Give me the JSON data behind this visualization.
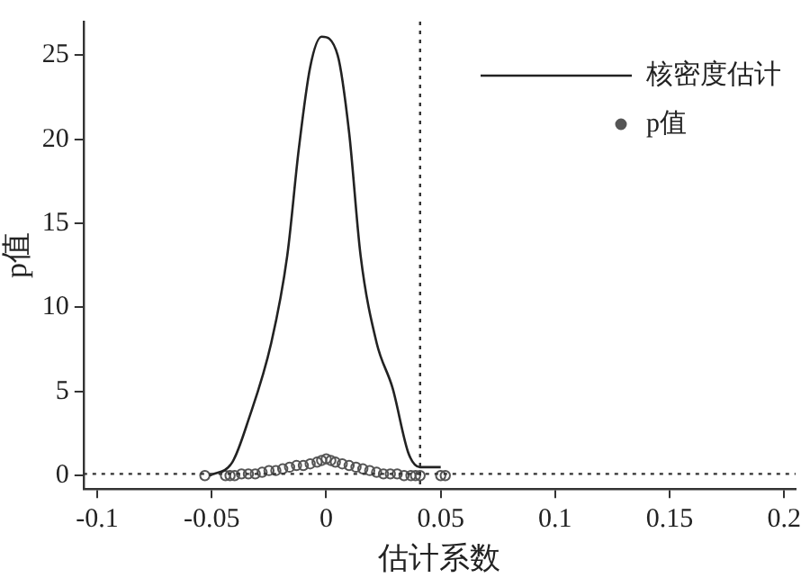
{
  "chart_data": {
    "type": "line",
    "xlabel": "估计系数",
    "ylabel": "p值",
    "xlim": [
      -0.106,
      0.205
    ],
    "ylim": [
      -0.8,
      27
    ],
    "xticks": [
      -0.1,
      -0.05,
      0,
      0.05,
      0.1,
      0.15,
      0.2
    ],
    "yticks": [
      0,
      5,
      10,
      15,
      20,
      25
    ],
    "grid": false,
    "legend": "top right",
    "marker": "none",
    "series": [
      {
        "name": "核密度估计",
        "type": "line",
        "color": "#222222",
        "line_style": "solid",
        "x": [
          -0.051,
          -0.041,
          -0.034,
          -0.024,
          -0.017,
          -0.012,
          -0.007,
          -0.002,
          0.005,
          0.01,
          0.015,
          0.022,
          0.029,
          0.036,
          0.041,
          0.05
        ],
        "values": [
          0,
          0.8,
          3.3,
          7.9,
          13.1,
          19.4,
          24.3,
          26.1,
          25,
          20.4,
          13.1,
          7.9,
          5.2,
          1.3,
          0.5,
          0.5
        ]
      },
      {
        "name": "p值",
        "type": "scatter",
        "marker": "circle",
        "color": "#555555",
        "x": [
          -0.053,
          -0.044,
          -0.042,
          -0.04,
          -0.037,
          -0.034,
          -0.031,
          -0.028,
          -0.025,
          -0.022,
          -0.019,
          -0.016,
          -0.013,
          -0.01,
          -0.007,
          -0.004,
          -0.002,
          0,
          0.002,
          0.004,
          0.007,
          0.01,
          0.013,
          0.016,
          0.019,
          0.022,
          0.025,
          0.028,
          0.031,
          0.034,
          0.037,
          0.039,
          0.041,
          0.05,
          0.052
        ],
        "values": [
          0,
          0,
          0,
          0,
          0.1,
          0.1,
          0.1,
          0.2,
          0.3,
          0.3,
          0.4,
          0.5,
          0.6,
          0.6,
          0.7,
          0.8,
          0.9,
          1,
          0.9,
          0.8,
          0.7,
          0.6,
          0.5,
          0.4,
          0.3,
          0.2,
          0.1,
          0.1,
          0.1,
          0,
          0,
          0,
          0,
          0,
          0
        ]
      }
    ],
    "ref_lines": [
      {
        "axis": "x",
        "value": 0.041,
        "line_style": "dotted",
        "color": "#333333"
      },
      {
        "axis": "y",
        "value": 0.1,
        "line_style": "dotted",
        "color": "#333333"
      }
    ]
  }
}
